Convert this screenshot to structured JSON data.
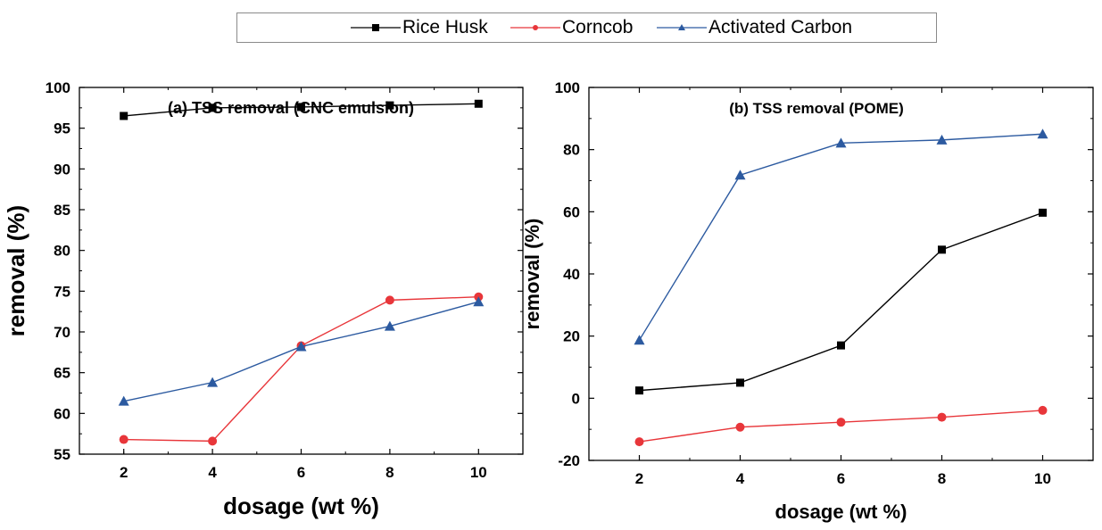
{
  "chart_data": [
    {
      "type": "line",
      "title": "(a)  TSS removal (CNC emulsion)",
      "xlabel": "dosage (wt %)",
      "ylabel": "removal (%)",
      "x": [
        2,
        4,
        6,
        8,
        10
      ],
      "xticks": [
        "2",
        "4",
        "6",
        "8",
        "10"
      ],
      "xlim": [
        1,
        11
      ],
      "ylim": [
        55,
        100
      ],
      "yticks": [
        "55",
        "60",
        "65",
        "70",
        "75",
        "80",
        "85",
        "90",
        "95",
        "100"
      ],
      "grid": false,
      "series": [
        {
          "name": "Rice Husk",
          "color": "#000000",
          "marker": "square",
          "values": [
            96.5,
            97.5,
            97.6,
            97.8,
            98.0
          ]
        },
        {
          "name": "Corncob",
          "color": "#e8363a",
          "marker": "circle",
          "values": [
            56.8,
            56.6,
            68.3,
            73.9,
            74.3
          ]
        },
        {
          "name": "Activated Carbon",
          "color": "#2c5aa0",
          "marker": "triangle",
          "values": [
            61.5,
            63.8,
            68.2,
            70.7,
            73.7
          ]
        }
      ]
    },
    {
      "type": "line",
      "title": "(b)  TSS removal (POME)",
      "xlabel": "dosage (wt %)",
      "ylabel": "removal (%)",
      "x": [
        2,
        4,
        6,
        8,
        10
      ],
      "xticks": [
        "2",
        "4",
        "6",
        "8",
        "10"
      ],
      "xlim": [
        1,
        11
      ],
      "ylim": [
        -20,
        100
      ],
      "yticks": [
        "-20",
        "0",
        "20",
        "40",
        "60",
        "80",
        "100"
      ],
      "grid": false,
      "series": [
        {
          "name": "Rice Husk",
          "color": "#000000",
          "marker": "square",
          "values": [
            2.5,
            5.0,
            17.0,
            47.8,
            59.7
          ]
        },
        {
          "name": "Corncob",
          "color": "#e8363a",
          "marker": "circle",
          "values": [
            -14.0,
            -9.3,
            -7.7,
            -6.1,
            -3.9
          ]
        },
        {
          "name": "Activated Carbon",
          "color": "#2c5aa0",
          "marker": "triangle",
          "values": [
            18.7,
            71.8,
            82.1,
            83.1,
            85.0
          ]
        }
      ]
    }
  ],
  "legend": {
    "position": "top-center",
    "items": [
      {
        "label": "Rice Husk",
        "color": "#000000",
        "marker": "square"
      },
      {
        "label": "Corncob",
        "color": "#e8363a",
        "marker": "circle"
      },
      {
        "label": "Activated Carbon",
        "color": "#2c5aa0",
        "marker": "triangle"
      }
    ]
  }
}
